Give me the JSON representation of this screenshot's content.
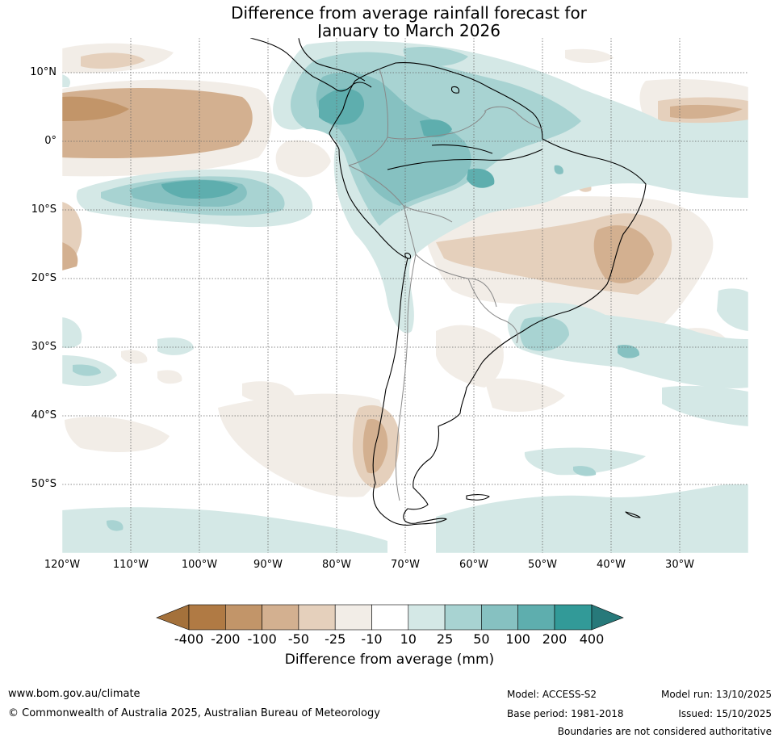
{
  "title": {
    "line1": "Difference from average rainfall forecast for",
    "line2": "January to March 2026"
  },
  "map": {
    "lat_labels": [
      "10°N",
      "0°",
      "10°S",
      "20°S",
      "30°S",
      "40°S",
      "50°S"
    ],
    "lon_labels": [
      "120°W",
      "110°W",
      "100°W",
      "90°W",
      "80°W",
      "70°W",
      "60°W",
      "50°W",
      "40°W",
      "30°W"
    ],
    "lat_extent": [
      15,
      -60
    ],
    "lon_extent": [
      -120,
      -20
    ]
  },
  "legend": {
    "title": "Difference from average (mm)",
    "ticks": [
      "-400",
      "-200",
      "-100",
      "-50",
      "-25",
      "-10",
      "10",
      "25",
      "50",
      "100",
      "200",
      "400"
    ],
    "colors": [
      "#a4713b",
      "#b07a44",
      "#c29569",
      "#d3b090",
      "#e5d0bc",
      "#f2ede7",
      "#ffffff",
      "#d4e8e6",
      "#a8d3d2",
      "#86c1c1",
      "#5eaeae",
      "#329a98",
      "#27797a"
    ]
  },
  "footer": {
    "website": "www.bom.gov.au/climate",
    "copyright": "© Commonwealth of Australia 2025, Australian Bureau of Meteorology",
    "model": "Model: ACCESS-S2",
    "base_period": "Base period: 1981-2018",
    "model_run": "Model run: 13/10/2025",
    "issued": "Issued: 15/10/2025",
    "disclaimer": "Boundaries are not considered authoritative"
  }
}
